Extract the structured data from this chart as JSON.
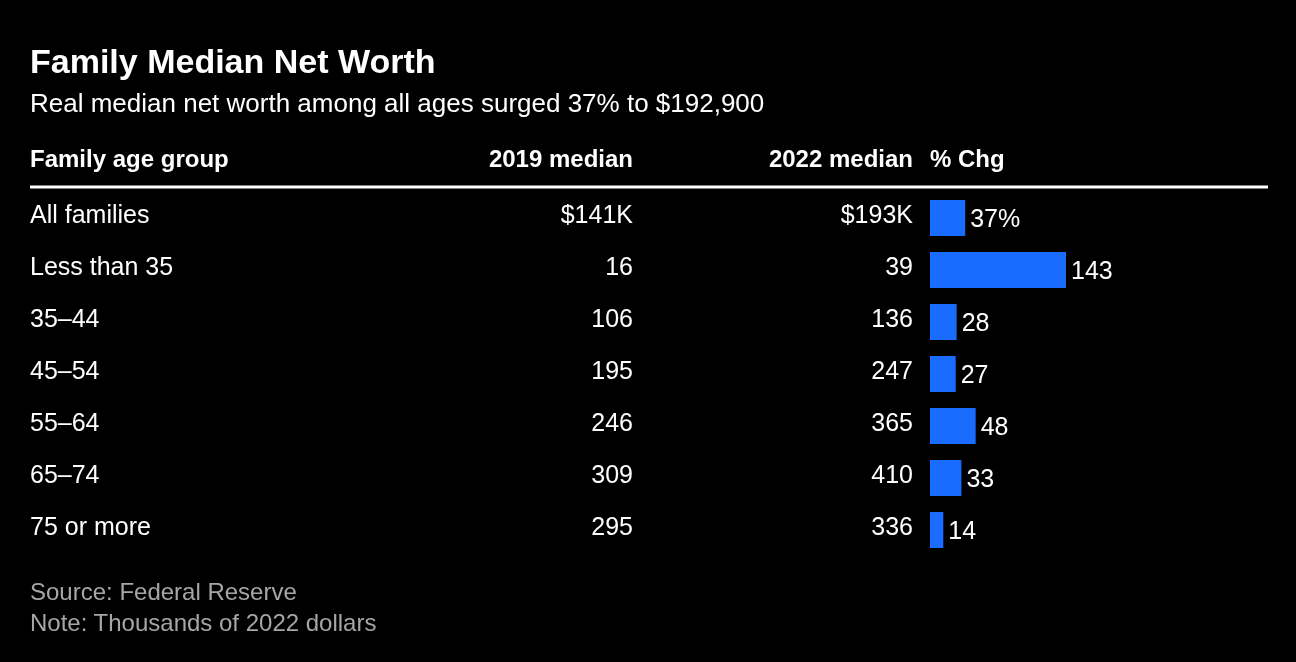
{
  "chart_data": [
    {
      "type": "other",
      "title": "Family Median Net Worth",
      "subtitle": "Real median net worth among all ages surged 37% to $192,900",
      "ylabel": "Family age group",
      "categories": [
        "All families",
        "Less than 35",
        "35–44",
        "45–54",
        "55–64",
        "65–74",
        "75 or more"
      ],
      "series": [
        {
          "name": "2019 median",
          "values": [
            141,
            16,
            106,
            195,
            246,
            309,
            295
          ],
          "value_labels": [
            "$141K",
            "16",
            "106",
            "195",
            "246",
            "309",
            "295"
          ]
        },
        {
          "name": "2022 median",
          "values": [
            193,
            39,
            136,
            247,
            365,
            410,
            336
          ],
          "value_labels": [
            "$193K",
            "39",
            "136",
            "247",
            "365",
            "410",
            "336"
          ]
        }
      ]
    },
    {
      "type": "bar",
      "orientation": "horizontal",
      "categories": [
        null,
        null,
        null,
        null,
        null,
        null,
        null
      ],
      "series": [
        {
          "name": "% Chg",
          "color": "#1a6cff",
          "values": [
            37,
            143,
            28,
            27,
            48,
            33,
            14
          ],
          "value_labels": [
            "37%",
            "143",
            "28",
            "27",
            "48",
            "33",
            "14"
          ]
        }
      ],
      "annotations": [
        "Source: Federal Reserve",
        "Note: Thousands of 2022 dollars"
      ]
    }
  ]
}
